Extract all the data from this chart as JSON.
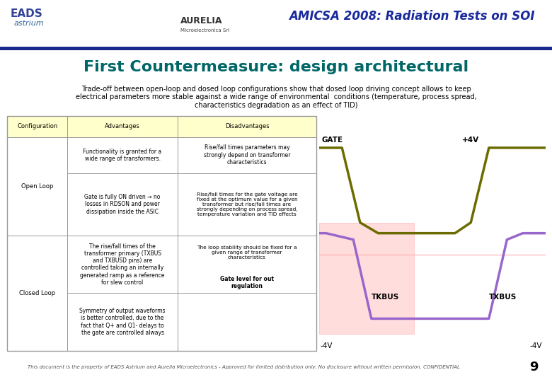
{
  "title_header": "AMICSA 2008: Radiation Tests on SOI",
  "slide_title": "First Countermeasure: design architectural",
  "subtitle": "Trade-off between open-loop and dosed loop configurations show that dosed loop driving concept allows to keep\nelectrical parameters more stable against a wide range of environmental  conditions (temperature, process spread,\ncharacteristics degradation as an effect of TID)",
  "title_color": "#006666",
  "subtitle_color": "#000000",
  "blue_bar_color": "#1a2a8c",
  "table_header_bg": "#ffffcc",
  "table_border_color": "#999999",
  "col_headers": [
    "Configuration",
    "Advantages",
    "Disadvantages"
  ],
  "row1_adv": "Functionality is granted for a\nwide range of transformers.",
  "row1_disadv": "Rise/fall times parameters may\nstrongly depend on transformer\ncharacteristics",
  "row2_label": "Open Loop",
  "row2_adv": "Gate is fully ON driven → no\nlosses in RDSON and power\ndissipation inside the ASIC",
  "row2_disadv": "Rise/fall times for the gate voltage are\nfixed at the optimum value for a given\ntransformer but rise/fall times are\nstrongly depending on process spread,\ntemperature variation and TID effects",
  "row3_label": "Closed Loop",
  "row3_adv": "The rise/fall times of the\ntransformer primary (TXBUS\nand TXBUSD pins) are\ncontrolled taking an internally\ngenerated ramp as a reference\nfor slew control",
  "row3_disadv": "The loop stability should be fixed for a\ngiven range of transformer\ncharacteristics",
  "row3_disadv2": "Gate level for out\nregulation",
  "row4_adv": "Symmetry of output waveforms\nis better controlled, due to the\nfact that Q+ and Q1- delays to\nthe gate are controlled always",
  "footer_text": "This document is the property of EADS Astrium and Aurelia Microelectronics - Approved for limited distribution only. No disclosure without written permission. CONFIDENTIAL",
  "page_number": "9",
  "gate_color": "#6b6b00",
  "txbus_color": "#9966cc",
  "pink_line_color": "#ffaaaa",
  "pink_box_color": "#ffdddd",
  "gate_label": "GATE",
  "txbus_label1": "TKBUS",
  "txbus_label2": "TXBUS",
  "plus4v_label": "+4V",
  "minus4v_label1": "-4V",
  "minus4v_label2": "-4V",
  "header_title_italic_color": "#1a2a9c"
}
